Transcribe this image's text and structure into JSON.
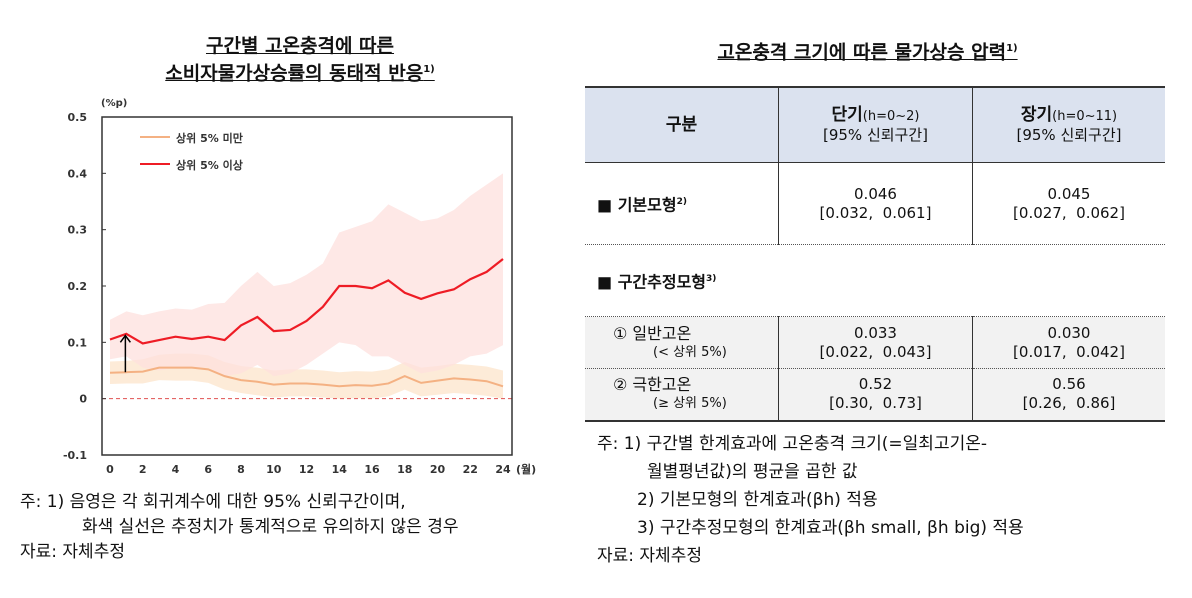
{
  "chart_data": {
    "type": "line",
    "title": "구간별 고온충격에 따른 소비자물가상승률의 동태적 반응",
    "title_lines": [
      "구간별 고온충격에 따른",
      "소비자물가상승률의 동태적 반응"
    ],
    "title_note": "1)",
    "ylabel": "(%p)",
    "xlabel": "(월)",
    "ylim": [
      -0.1,
      0.5
    ],
    "xlim": [
      0,
      24
    ],
    "yticks": [
      "0.5",
      "0.4",
      "0.3",
      "0.2",
      "0.1",
      "0",
      "-0.1"
    ],
    "xticks": [
      "0",
      "2",
      "4",
      "6",
      "8",
      "10",
      "12",
      "14",
      "16",
      "18",
      "20",
      "22",
      "24"
    ],
    "x": [
      0,
      1,
      2,
      3,
      4,
      5,
      6,
      7,
      8,
      9,
      10,
      11,
      12,
      13,
      14,
      15,
      16,
      17,
      18,
      19,
      20,
      21,
      22,
      23,
      24
    ],
    "legend_position": "top-left",
    "series": [
      {
        "name": "상위 5% 미만",
        "color": "#f4b183",
        "values": [
          0.046,
          0.047,
          0.048,
          0.055,
          0.055,
          0.055,
          0.052,
          0.04,
          0.033,
          0.03,
          0.025,
          0.027,
          0.027,
          0.025,
          0.022,
          0.024,
          0.023,
          0.027,
          0.04,
          0.028,
          0.032,
          0.036,
          0.034,
          0.031,
          0.022
        ],
        "band_upper": [
          0.066,
          0.067,
          0.07,
          0.078,
          0.08,
          0.08,
          0.077,
          0.065,
          0.058,
          0.055,
          0.05,
          0.052,
          0.052,
          0.05,
          0.047,
          0.049,
          0.048,
          0.052,
          0.065,
          0.055,
          0.058,
          0.062,
          0.06,
          0.057,
          0.05
        ],
        "band_lower": [
          0.026,
          0.027,
          0.027,
          0.033,
          0.032,
          0.032,
          0.028,
          0.016,
          0.01,
          0.006,
          0.002,
          0.004,
          0.004,
          0.002,
          0.0,
          0.001,
          0.0,
          0.004,
          0.016,
          0.004,
          0.007,
          0.01,
          0.008,
          0.005,
          0.0
        ]
      },
      {
        "name": "상위 5% 이상",
        "color": "#ee1c25",
        "values": [
          0.105,
          0.115,
          0.098,
          0.104,
          0.11,
          0.106,
          0.11,
          0.104,
          0.13,
          0.145,
          0.12,
          0.122,
          0.138,
          0.163,
          0.2,
          0.2,
          0.196,
          0.21,
          0.188,
          0.177,
          0.187,
          0.194,
          0.212,
          0.225,
          0.248
        ],
        "band_upper": [
          0.14,
          0.155,
          0.148,
          0.155,
          0.16,
          0.158,
          0.168,
          0.17,
          0.2,
          0.225,
          0.2,
          0.205,
          0.22,
          0.24,
          0.295,
          0.305,
          0.315,
          0.345,
          0.33,
          0.315,
          0.32,
          0.335,
          0.36,
          0.38,
          0.4
        ],
        "band_lower": [
          0.07,
          0.075,
          0.055,
          0.05,
          0.055,
          0.055,
          0.055,
          0.04,
          0.045,
          0.06,
          0.04,
          0.045,
          0.06,
          0.08,
          0.1,
          0.095,
          0.075,
          0.075,
          0.06,
          0.045,
          0.05,
          0.06,
          0.075,
          0.08,
          0.095
        ]
      }
    ],
    "zero_line_color": "#e05050"
  },
  "left_notes": [
    "주: 1) 음영은 각 회귀계수에 대한 95% 신뢰구간이며,",
    "화색 실선은 추정치가 통계적으로 유의하지 않은 경우",
    "자료: 자체추정"
  ],
  "table": {
    "title": "고온충격 크기에 따른 물가상승 압력",
    "title_note": "1)",
    "headers": [
      {
        "label": "구분"
      },
      {
        "label": "단기",
        "range": "(h=0~2)",
        "sub": "[95% 신뢰구간]"
      },
      {
        "label": "장기",
        "range": "(h=0~11)",
        "sub": "[95% 신뢰구간]"
      }
    ],
    "basic": {
      "label": "■ 기본모형",
      "note": "2)",
      "short": "0.046",
      "short_ci": "[0.032,  0.061]",
      "long": "0.045",
      "long_ci": "[0.027,  0.062]"
    },
    "section": {
      "label": "■ 구간추정모형",
      "note": "3)"
    },
    "rows": [
      {
        "label": "① 일반고온",
        "sub": "(< 상위 5%)",
        "short": "0.033",
        "short_ci": "[0.022,  0.043]",
        "long": "0.030",
        "long_ci": "[0.017,  0.042]"
      },
      {
        "label": "② 극한고온",
        "sub": "(≥ 상위 5%)",
        "short": "0.52",
        "short_ci": "[0.30,  0.73]",
        "long": "0.56",
        "long_ci": "[0.26,  0.86]"
      }
    ]
  },
  "right_notes": [
    "주: 1) 구간별 한계효과에 고온충격 크기(=일최고기온-",
    "월별평년값)의 평균을 곱한 값",
    "2) 기본모형의 한계효과(βh) 적용",
    "3) 구간추정모형의 한계효과(βh small, βh big) 적용",
    "자료: 자체추정"
  ]
}
